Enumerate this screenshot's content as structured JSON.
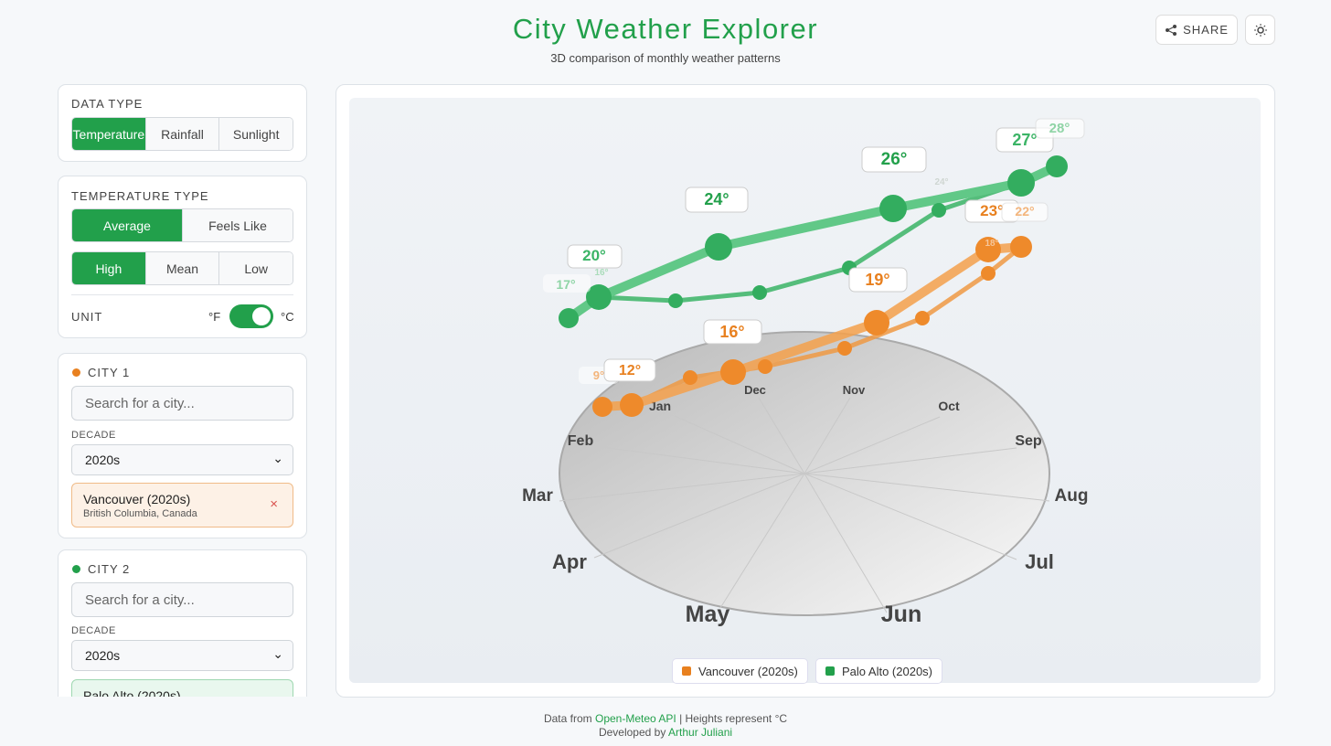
{
  "header": {
    "title": "City Weather Explorer",
    "subtitle": "3D comparison of monthly weather patterns",
    "share": "SHARE"
  },
  "sidebar": {
    "data_type": {
      "label": "DATA TYPE",
      "options": [
        "Temperature",
        "Rainfall",
        "Sunlight"
      ]
    },
    "temperature_type": {
      "label": "TEMPERATURE TYPE",
      "kinds": [
        "Average",
        "Feels Like"
      ],
      "stats": [
        "High",
        "Mean",
        "Low"
      ]
    },
    "unit": {
      "label": "UNIT",
      "off": "°F",
      "on": "°C"
    },
    "cities": [
      {
        "label": "CITY 1",
        "placeholder": "Search for a city...",
        "decade_label": "DECADE",
        "decade": "2020s",
        "name": "Vancouver (2020s)",
        "region": "British Columbia, Canada"
      },
      {
        "label": "CITY 2",
        "placeholder": "Search for a city...",
        "decade_label": "DECADE",
        "decade": "2020s",
        "name": "Palo Alto (2020s)"
      }
    ]
  },
  "chart": {
    "months": [
      "Jan",
      "Feb",
      "Mar",
      "Apr",
      "May",
      "Jun",
      "Jul",
      "Aug",
      "Sep",
      "Oct",
      "Nov",
      "Dec"
    ],
    "palo_alto_labels": [
      "17°",
      "16°",
      "20°",
      "24°",
      "26°",
      "24°",
      "27°",
      "28°"
    ],
    "vancouver_labels": [
      "9°",
      "12°",
      "16°",
      "19°",
      "18°",
      "23°",
      "22°"
    ],
    "legend": [
      "Vancouver (2020s)",
      "Palo Alto (2020s)"
    ]
  },
  "footer": {
    "source_prefix": "Data from",
    "source_link": "Open-Meteo API",
    "source_suffix": "| Heights represent °C",
    "credit_prefix": "Developed by",
    "credit_link": "Arthur Juliani"
  }
}
